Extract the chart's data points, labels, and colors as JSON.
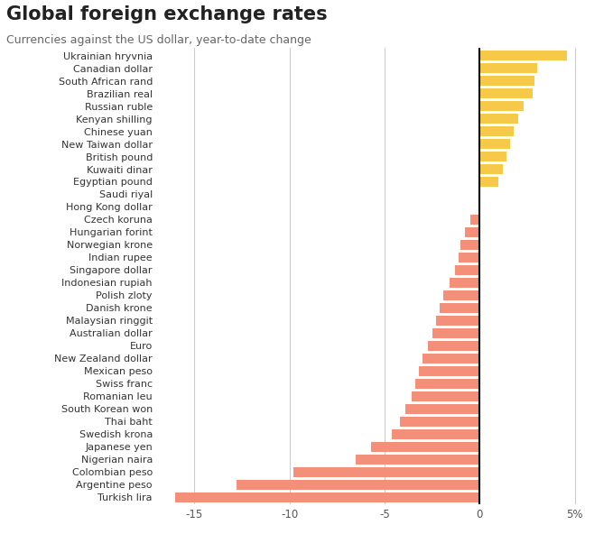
{
  "title": "Global foreign exchange rates",
  "subtitle": "Currencies against the US dollar, year-to-date change",
  "currencies": [
    "Ukrainian hryvnia",
    "Canadian dollar",
    "South African rand",
    "Brazilian real",
    "Russian ruble",
    "Kenyan shilling",
    "Chinese yuan",
    "New Taiwan dollar",
    "British pound",
    "Kuwaiti dinar",
    "Egyptian pound",
    "Saudi riyal",
    "Hong Kong dollar",
    "Czech koruna",
    "Hungarian forint",
    "Norwegian krone",
    "Indian rupee",
    "Singapore dollar",
    "Indonesian rupiah",
    "Polish zloty",
    "Danish krone",
    "Malaysian ringgit",
    "Australian dollar",
    "Euro",
    "New Zealand dollar",
    "Mexican peso",
    "Swiss franc",
    "Romanian leu",
    "South Korean won",
    "Thai baht",
    "Swedish krona",
    "Japanese yen",
    "Nigerian naira",
    "Colombian peso",
    "Argentine peso",
    "Turkish lira"
  ],
  "values": [
    4.6,
    3.0,
    2.9,
    2.8,
    2.3,
    2.0,
    1.8,
    1.6,
    1.4,
    1.2,
    1.0,
    0.05,
    -0.05,
    -0.5,
    -0.8,
    -1.0,
    -1.1,
    -1.3,
    -1.6,
    -1.9,
    -2.1,
    -2.3,
    -2.5,
    -2.7,
    -3.0,
    -3.2,
    -3.4,
    -3.6,
    -3.9,
    -4.2,
    -4.6,
    -5.7,
    -6.5,
    -9.8,
    -12.8,
    -16.0
  ],
  "positive_color": "#F7C948",
  "negative_color": "#F4907A",
  "xlim": [
    -17.0,
    6.2
  ],
  "xticks": [
    -15,
    -10,
    -5,
    0,
    5
  ],
  "xtick_labels": [
    "-15",
    "-10",
    "-5",
    "0",
    "5%"
  ],
  "grid_color": "#cccccc",
  "title_fontsize": 15,
  "subtitle_fontsize": 9,
  "tick_fontsize": 8.5,
  "label_fontsize": 8.0,
  "bar_height": 0.78
}
